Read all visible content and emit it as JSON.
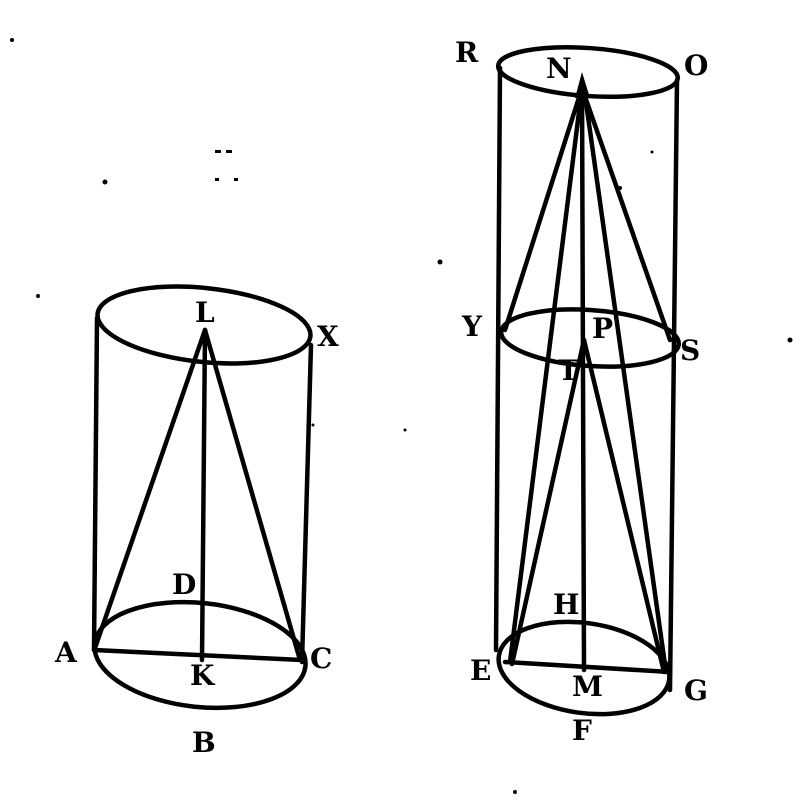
{
  "left_figure": {
    "labels": {
      "L": "L",
      "X": "X",
      "D": "D",
      "A": "A",
      "K": "K",
      "C": "C",
      "B": "B"
    }
  },
  "right_figure": {
    "labels": {
      "R": "R",
      "N": "N",
      "O": "O",
      "Y": "Y",
      "P": "P",
      "T": "T",
      "S": "S",
      "H": "H",
      "E": "E",
      "M": "M",
      "G": "G",
      "F": "F"
    }
  }
}
